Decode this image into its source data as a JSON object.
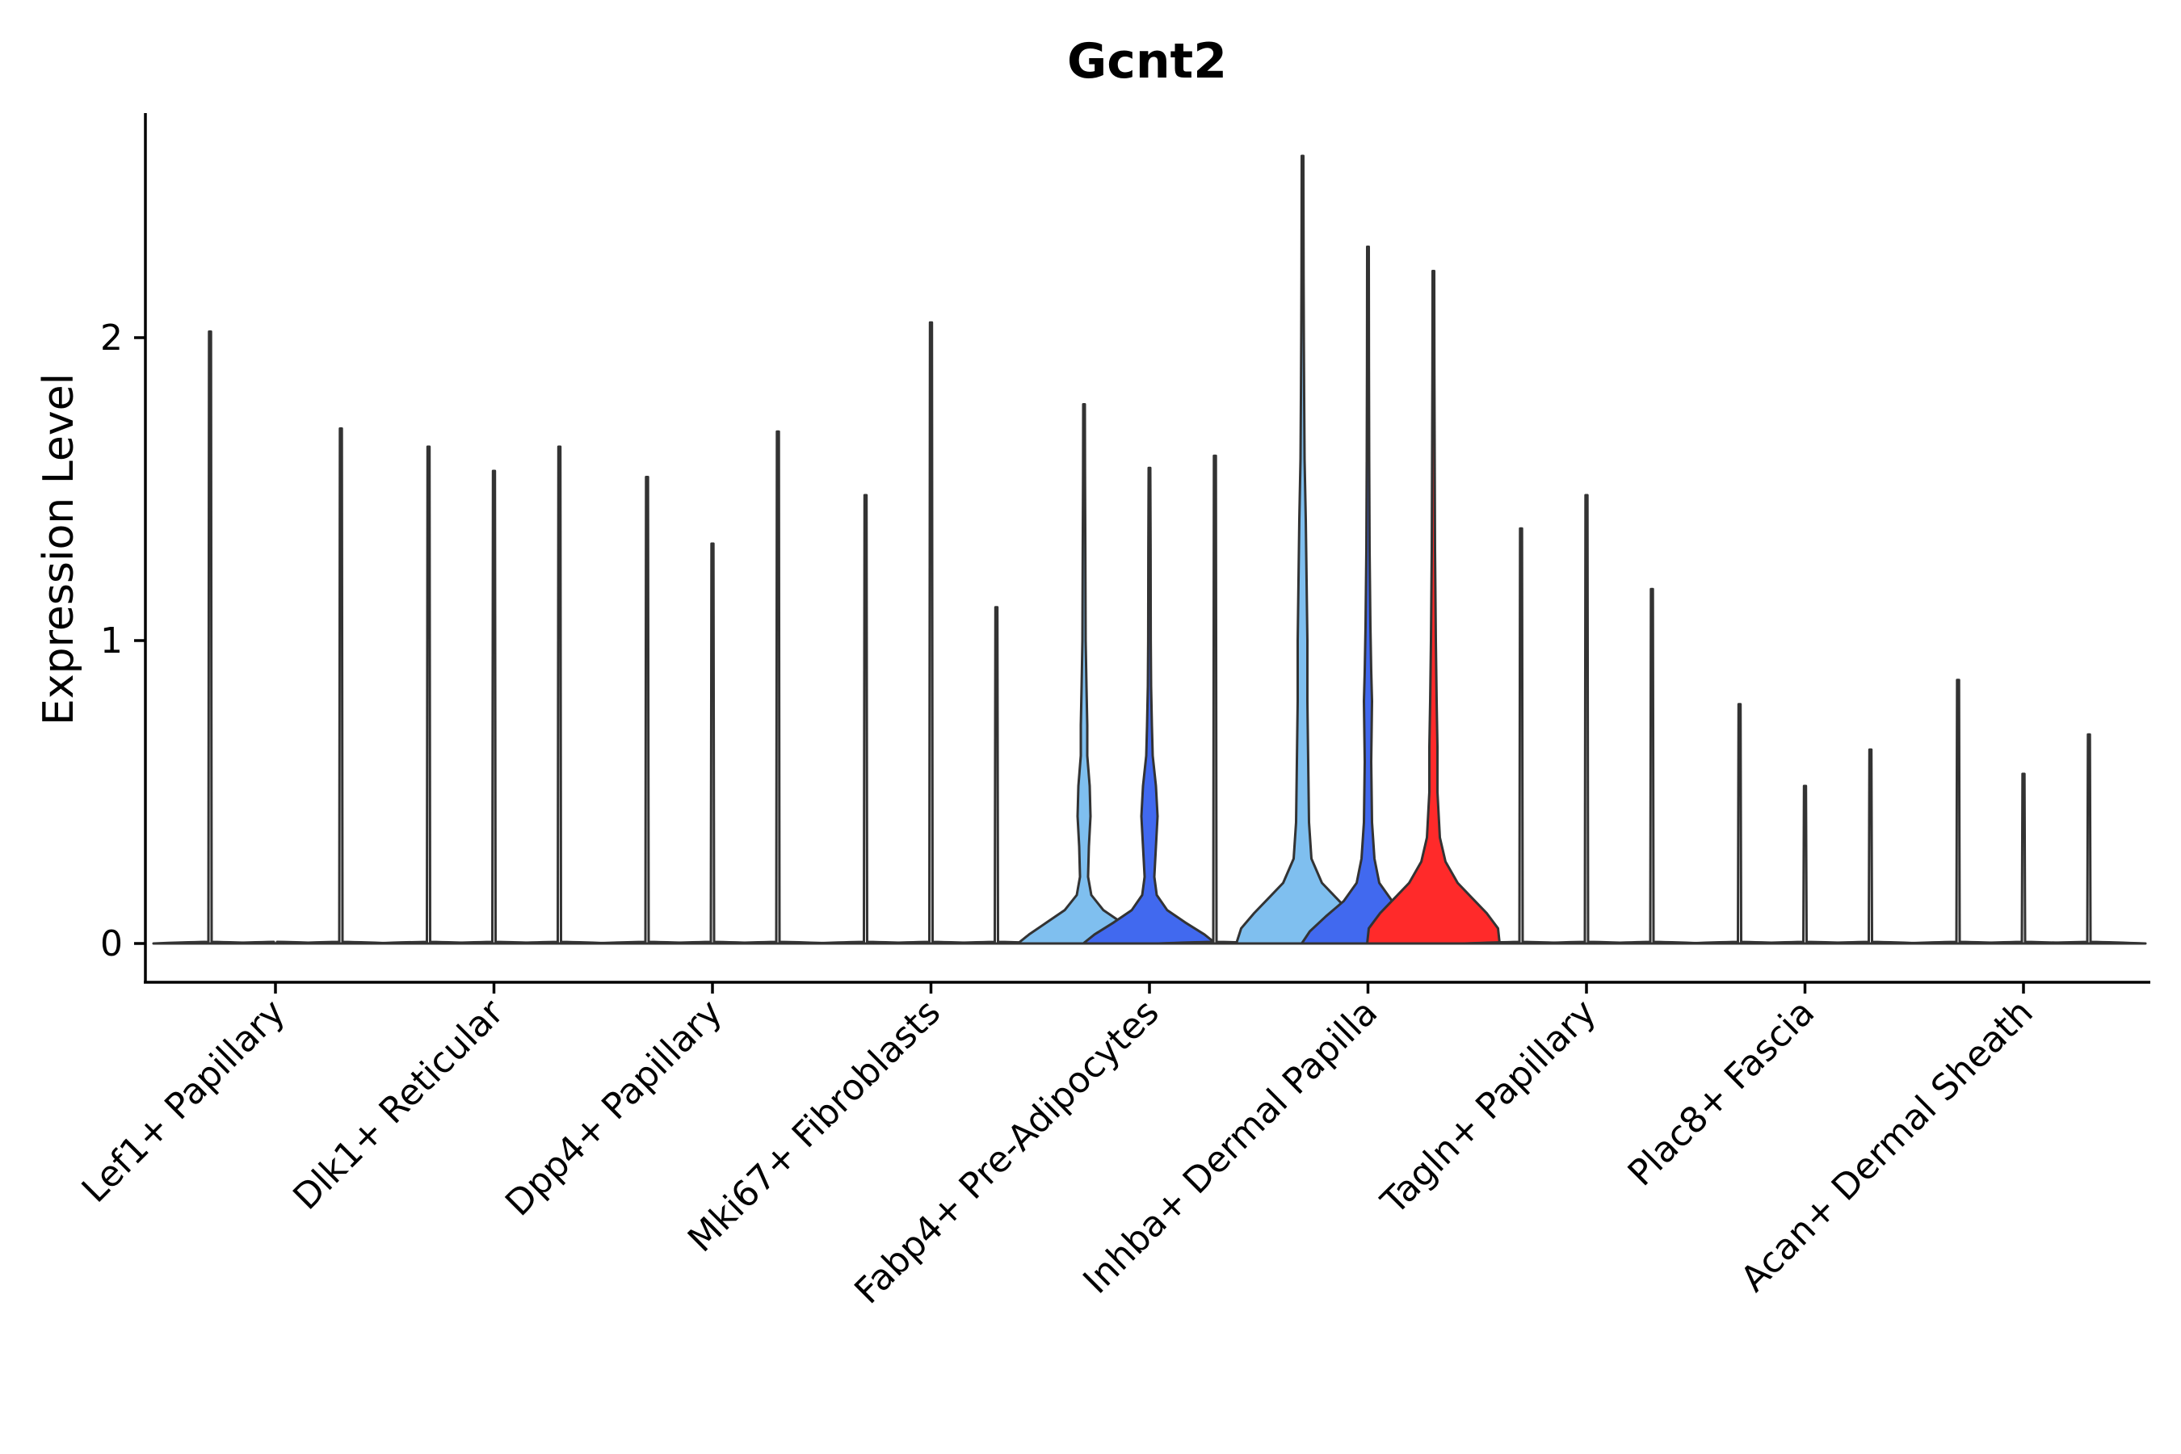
{
  "chart_data": {
    "type": "violin",
    "title": "Gcnt2",
    "xlabel": "",
    "ylabel": "Expression Level",
    "ylim": [
      -0.13,
      2.75
    ],
    "yticks": [
      0,
      1,
      2
    ],
    "colors": {
      "light_blue": "#7fbfef",
      "royal_blue": "#4169ef",
      "red": "#ff2a2a",
      "white": "#ffffff"
    },
    "categories": [
      "Lef1+ Papillary",
      "Dlk1+ Reticular",
      "Dpp4+ Papillary",
      "Mki67+ Fibroblasts",
      "Fabp4+ Pre-Adipocytes",
      "Inhba+ Dermal Papilla",
      "Tagln+ Papillary",
      "Plac8+ Fascia",
      "Acan+ Dermal Sheath"
    ],
    "groups": [
      {
        "category": "Lef1+ Papillary",
        "violins": [
          {
            "max": 2.02,
            "shape": "flat",
            "color": "white"
          },
          {
            "max": 0.0,
            "shape": "flat",
            "color": "white"
          },
          {
            "max": 1.7,
            "shape": "flat",
            "color": "white"
          }
        ]
      },
      {
        "category": "Dlk1+ Reticular",
        "violins": [
          {
            "max": 1.64,
            "shape": "flat",
            "color": "white"
          },
          {
            "max": 1.56,
            "shape": "flat",
            "color": "white"
          },
          {
            "max": 1.64,
            "shape": "flat",
            "color": "white"
          }
        ]
      },
      {
        "category": "Dpp4+ Papillary",
        "violins": [
          {
            "max": 1.54,
            "shape": "flat",
            "color": "white"
          },
          {
            "max": 1.32,
            "shape": "flat",
            "color": "white"
          },
          {
            "max": 1.69,
            "shape": "flat",
            "color": "white"
          }
        ]
      },
      {
        "category": "Mki67+ Fibroblasts",
        "violins": [
          {
            "max": 1.48,
            "shape": "flat",
            "color": "white"
          },
          {
            "max": 2.05,
            "shape": "flat",
            "color": "white"
          },
          {
            "max": 1.11,
            "shape": "flat",
            "color": "white"
          }
        ]
      },
      {
        "category": "Fabp4+ Pre-Adipocytes",
        "violins": [
          {
            "max": 1.78,
            "shape": "fabp4",
            "color": "light_blue"
          },
          {
            "max": 1.57,
            "shape": "fabp4b",
            "color": "royal_blue"
          },
          {
            "max": 1.61,
            "shape": "flat",
            "color": "white"
          }
        ]
      },
      {
        "category": "Inhba+ Dermal Papilla",
        "violins": [
          {
            "max": 2.6,
            "shape": "inhba",
            "color": "light_blue"
          },
          {
            "max": 2.3,
            "shape": "inhbb",
            "color": "royal_blue"
          },
          {
            "max": 2.22,
            "shape": "inhbc",
            "color": "red"
          }
        ]
      },
      {
        "category": "Tagln+ Papillary",
        "violins": [
          {
            "max": 1.37,
            "shape": "flat",
            "color": "white"
          },
          {
            "max": 1.48,
            "shape": "flat",
            "color": "white"
          },
          {
            "max": 1.17,
            "shape": "flat",
            "color": "white"
          }
        ]
      },
      {
        "category": "Plac8+ Fascia",
        "violins": [
          {
            "max": 0.79,
            "shape": "flat",
            "color": "white"
          },
          {
            "max": 0.52,
            "shape": "flat",
            "color": "white"
          },
          {
            "max": 0.64,
            "shape": "flat",
            "color": "white"
          }
        ]
      },
      {
        "category": "Acan+ Dermal Sheath",
        "violins": [
          {
            "max": 0.87,
            "shape": "flat",
            "color": "white"
          },
          {
            "max": 0.56,
            "shape": "flat",
            "color": "white"
          },
          {
            "max": 0.69,
            "shape": "flat",
            "color": "white"
          }
        ]
      }
    ]
  }
}
